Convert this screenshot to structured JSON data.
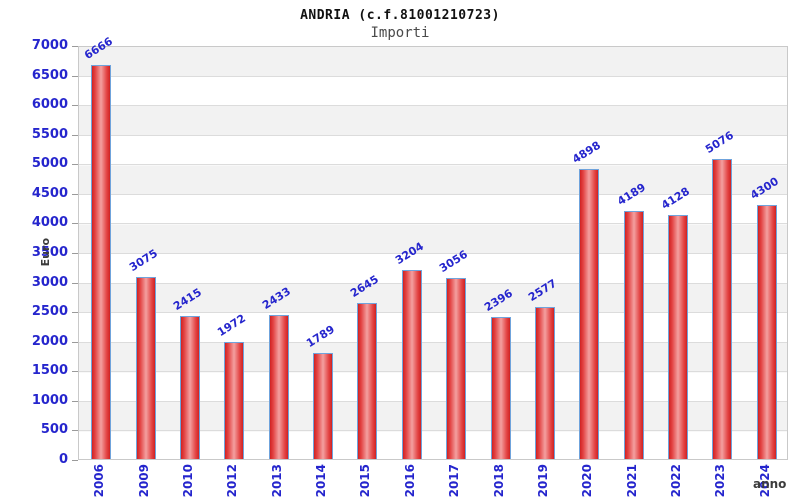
{
  "header": {
    "title": "ANDRIA (c.f.81001210723)",
    "subtitle": "Importi"
  },
  "chart_data": {
    "type": "bar",
    "title": "ANDRIA (c.f.81001210723)",
    "subtitle": "Importi",
    "categories": [
      "2006",
      "2009",
      "2010",
      "2012",
      "2013",
      "2014",
      "2015",
      "2016",
      "2017",
      "2018",
      "2019",
      "2020",
      "2021",
      "2022",
      "2023",
      "2024"
    ],
    "values": [
      6666,
      3075,
      2415,
      1972,
      2433,
      1789,
      2645,
      3204,
      3056,
      2396,
      2577,
      4898,
      4189,
      4128,
      5076,
      4300
    ],
    "xlabel": "anno",
    "ylabel": "Euro",
    "ylim": [
      0,
      7000
    ],
    "ytick_step": 500,
    "grid": true,
    "legend": "none",
    "colors": {
      "bar_fill_dark": "#d02222",
      "bar_fill_light": "#f3a0a0",
      "bar_border": "#6fa3dc",
      "tick_label_blue": "#2525cd",
      "axis_title_gray": "#3c3c3c",
      "band_gray": "#f2f2f2",
      "band_white": "#ffffff",
      "gridline": "#dcdcdc",
      "plot_border": "#c9c9c9"
    }
  }
}
